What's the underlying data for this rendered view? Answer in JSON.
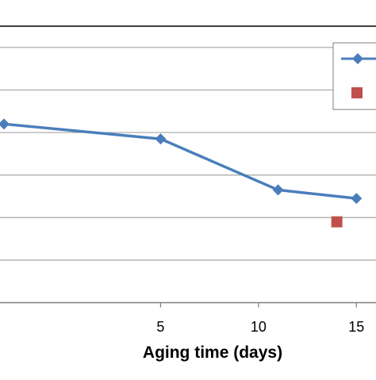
{
  "chart_data": {
    "type": "line",
    "xlabel": "Aging time (days)",
    "ylabel": "",
    "xlim": [
      -3.2,
      16
    ],
    "ylim": [
      0,
      6.5
    ],
    "x_ticks": [
      5,
      10,
      15
    ],
    "x_tick_labels": [
      "5",
      "10",
      "15"
    ],
    "y_gridlines": [
      1,
      2,
      3,
      4,
      5,
      6
    ],
    "grid": true,
    "legend": "top-right",
    "series": [
      {
        "type": "line",
        "marker": "diamond",
        "color": "#4a7ebb",
        "x": [
          -3,
          5,
          11,
          15
        ],
        "y": [
          4.2,
          3.85,
          2.65,
          2.45
        ]
      },
      {
        "type": "scatter",
        "marker": "square",
        "color": "#c0504d",
        "x": [
          14
        ],
        "y": [
          1.9
        ]
      }
    ]
  }
}
